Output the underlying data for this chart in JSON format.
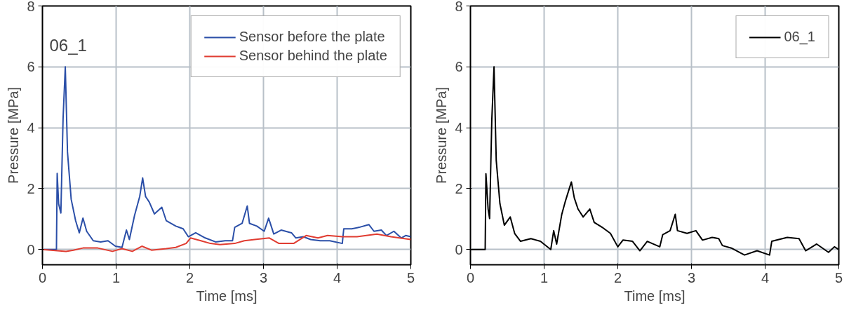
{
  "chart_data": [
    {
      "type": "line",
      "xlabel": "Time [ms]",
      "ylabel": "Pressure [MPa]",
      "annotations": [
        "06_1"
      ],
      "xlim": [
        0,
        5
      ],
      "ylim": [
        -0.5,
        8
      ],
      "xticks": [
        0,
        1,
        2,
        3,
        4,
        5
      ],
      "yticks": [
        0,
        2,
        4,
        6,
        8
      ],
      "grid": true,
      "legend": "top right",
      "series": [
        {
          "name": "Sensor before the plate",
          "color": "#2b4fa8",
          "x": [
            0,
            0.19,
            0.2,
            0.22,
            0.25,
            0.28,
            0.31,
            0.34,
            0.39,
            0.45,
            0.5,
            0.55,
            0.6,
            0.69,
            0.79,
            0.89,
            0.99,
            1.08,
            1.14,
            1.18,
            1.25,
            1.32,
            1.36,
            1.4,
            1.45,
            1.52,
            1.62,
            1.68,
            1.81,
            1.91,
            1.98,
            2.08,
            2.21,
            2.35,
            2.48,
            2.58,
            2.61,
            2.71,
            2.78,
            2.81,
            2.91,
            3.01,
            3.07,
            3.14,
            3.24,
            3.38,
            3.44,
            3.54,
            3.64,
            3.77,
            3.9,
            4.07,
            4.09,
            4.2,
            4.3,
            4.43,
            4.5,
            4.6,
            4.67,
            4.77,
            4.87,
            4.93,
            5
          ],
          "values": [
            0,
            0,
            2.5,
            1.5,
            1.2,
            4.3,
            6.0,
            3.2,
            1.65,
            0.95,
            0.55,
            1.03,
            0.6,
            0.29,
            0.25,
            0.29,
            0.11,
            0.07,
            0.64,
            0.33,
            1.12,
            1.74,
            2.35,
            1.74,
            1.56,
            1.17,
            1.39,
            0.95,
            0.77,
            0.68,
            0.42,
            0.55,
            0.38,
            0.25,
            0.29,
            0.29,
            0.73,
            0.86,
            1.43,
            0.86,
            0.77,
            0.6,
            1.03,
            0.51,
            0.64,
            0.55,
            0.38,
            0.42,
            0.33,
            0.29,
            0.29,
            0.2,
            0.68,
            0.68,
            0.73,
            0.82,
            0.6,
            0.64,
            0.46,
            0.6,
            0.38,
            0.46,
            0.42
          ]
        },
        {
          "name": "Sensor behind the plate",
          "color": "#e03c31",
          "x": [
            0,
            0.32,
            0.42,
            0.55,
            0.75,
            0.95,
            1.08,
            1.22,
            1.35,
            1.48,
            1.68,
            1.81,
            1.95,
            2.01,
            2.15,
            2.28,
            2.41,
            2.61,
            2.74,
            2.88,
            3.08,
            3.21,
            3.41,
            3.58,
            3.74,
            3.87,
            4.07,
            4.27,
            4.54,
            4.73,
            5
          ],
          "values": [
            0,
            -0.06,
            -0.02,
            0.05,
            0.05,
            -0.06,
            0.03,
            -0.06,
            0.11,
            -0.02,
            0.03,
            0.07,
            0.2,
            0.38,
            0.29,
            0.2,
            0.16,
            0.2,
            0.29,
            0.33,
            0.38,
            0.2,
            0.2,
            0.46,
            0.38,
            0.46,
            0.42,
            0.42,
            0.51,
            0.42,
            0.33
          ]
        }
      ]
    },
    {
      "type": "line",
      "xlabel": "Time [ms]",
      "ylabel": "Pressure [MPa]",
      "xlim": [
        0,
        5
      ],
      "ylim": [
        -0.5,
        8
      ],
      "xticks": [
        0,
        1,
        2,
        3,
        4,
        5
      ],
      "yticks": [
        0,
        2,
        4,
        6,
        8
      ],
      "grid": true,
      "legend": "top right",
      "series": [
        {
          "name": "06_1",
          "color": "#000000",
          "x": [
            0,
            0.2,
            0.21,
            0.24,
            0.26,
            0.29,
            0.32,
            0.35,
            0.4,
            0.46,
            0.54,
            0.6,
            0.68,
            0.82,
            0.95,
            1.09,
            1.13,
            1.17,
            1.24,
            1.29,
            1.37,
            1.41,
            1.46,
            1.53,
            1.62,
            1.68,
            1.8,
            1.9,
            2.0,
            2.07,
            2.2,
            2.3,
            2.4,
            2.57,
            2.61,
            2.71,
            2.78,
            2.81,
            2.94,
            3.06,
            3.15,
            3.28,
            3.37,
            3.42,
            3.55,
            3.72,
            3.89,
            4.06,
            4.09,
            4.3,
            4.46,
            4.55,
            4.7,
            4.86,
            4.94,
            5
          ],
          "values": [
            0,
            0,
            2.49,
            1.33,
            1.02,
            4.27,
            6.0,
            2.93,
            1.51,
            0.8,
            1.07,
            0.53,
            0.27,
            0.36,
            0.27,
            0,
            0.62,
            0.18,
            1.16,
            1.6,
            2.22,
            1.69,
            1.33,
            1.07,
            1.33,
            0.89,
            0.71,
            0.53,
            0.09,
            0.31,
            0.27,
            -0.04,
            0.27,
            0.09,
            0.49,
            0.62,
            1.16,
            0.62,
            0.53,
            0.62,
            0.31,
            0.4,
            0.36,
            0.13,
            0.04,
            -0.18,
            -0.04,
            -0.18,
            0.27,
            0.4,
            0.36,
            -0.04,
            0.18,
            -0.09,
            0.09,
            0
          ]
        }
      ]
    }
  ]
}
